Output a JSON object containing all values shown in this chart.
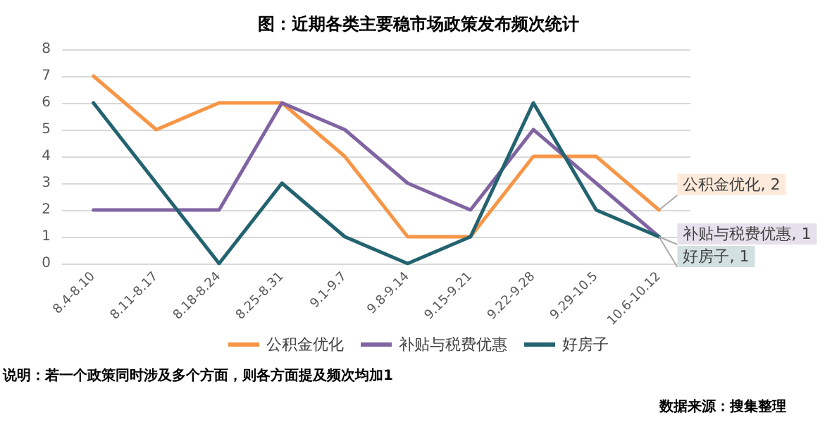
{
  "chart_data": {
    "type": "line",
    "title": "图：近期各类主要稳市场政策发布频次统计",
    "categories": [
      "8.4-8.10",
      "8.11-8.17",
      "8.18-8.24",
      "8.25-8.31",
      "9.1-9.7",
      "9.8-9.14",
      "9.15-9.21",
      "9.22-9.28",
      "9.29-10.5",
      "10.6-10.12"
    ],
    "series": [
      {
        "name": "公积金优化",
        "color": "#f79646",
        "values": [
          7,
          5,
          6,
          6,
          4,
          1,
          1,
          4,
          4,
          2
        ],
        "value_labels": [
          null,
          null,
          null,
          null,
          null,
          null,
          null,
          null,
          null,
          "公积金优化, 2"
        ]
      },
      {
        "name": "补贴与税费优惠",
        "color": "#8064a2",
        "values": [
          2,
          2,
          2,
          6,
          5,
          3,
          2,
          5,
          3,
          1
        ],
        "value_labels": [
          null,
          null,
          null,
          null,
          null,
          null,
          null,
          null,
          null,
          "补贴与税费优惠, 1"
        ]
      },
      {
        "name": "好房子",
        "color": "#23636f",
        "values": [
          6,
          3,
          0,
          3,
          1,
          0,
          1,
          6,
          2,
          1
        ],
        "value_labels": [
          null,
          null,
          null,
          null,
          null,
          null,
          null,
          null,
          null,
          "好房子, 1"
        ]
      }
    ],
    "ylim": [
      0,
      8
    ],
    "yticks": [
      0,
      1,
      2,
      3,
      4,
      5,
      6,
      7,
      8
    ],
    "grid": "y",
    "legend": "bottom",
    "marker": "none",
    "line_style": "solid",
    "annotations": [
      "说明：若一个政策同时涉及多个方面，则各方面提及频次均加1",
      "数据来源：搜集整理"
    ]
  }
}
